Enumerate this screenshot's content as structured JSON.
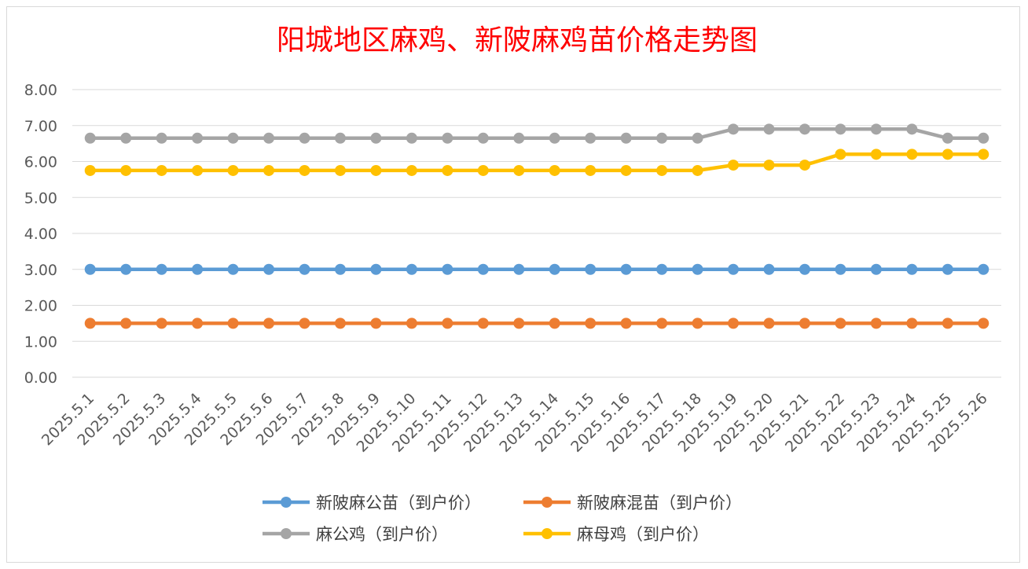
{
  "chart_data": {
    "type": "line",
    "title": "阳城地区麻鸡、新陂麻鸡苗价格走势图",
    "xlabel": "",
    "ylabel": "",
    "ylim": [
      0,
      8
    ],
    "yticks": [
      "0.00",
      "1.00",
      "2.00",
      "3.00",
      "4.00",
      "5.00",
      "6.00",
      "7.00",
      "8.00"
    ],
    "grid": true,
    "legend_position": "bottom",
    "categories": [
      "2025.5.1",
      "2025.5.2",
      "2025.5.3",
      "2025.5.4",
      "2025.5.5",
      "2025.5.6",
      "2025.5.7",
      "2025.5.8",
      "2025.5.9",
      "2025.5.10",
      "2025.5.11",
      "2025.5.12",
      "2025.5.13",
      "2025.5.14",
      "2025.5.15",
      "2025.5.16",
      "2025.5.17",
      "2025.5.18",
      "2025.5.19",
      "2025.5.20",
      "2025.5.21",
      "2025.5.22",
      "2025.5.23",
      "2025.5.24",
      "2025.5.25",
      "2025.5.26"
    ],
    "series": [
      {
        "name": "新陂麻公苗（到户价）",
        "color": "#5b9bd5",
        "values": [
          3,
          3,
          3,
          3,
          3,
          3,
          3,
          3,
          3,
          3,
          3,
          3,
          3,
          3,
          3,
          3,
          3,
          3,
          3,
          3,
          3,
          3,
          3,
          3,
          3,
          3
        ]
      },
      {
        "name": "新陂麻混苗（到户价）",
        "color": "#ed7d31",
        "values": [
          1.5,
          1.5,
          1.5,
          1.5,
          1.5,
          1.5,
          1.5,
          1.5,
          1.5,
          1.5,
          1.5,
          1.5,
          1.5,
          1.5,
          1.5,
          1.5,
          1.5,
          1.5,
          1.5,
          1.5,
          1.5,
          1.5,
          1.5,
          1.5,
          1.5,
          1.5
        ]
      },
      {
        "name": "麻公鸡（到户价）",
        "color": "#a5a5a5",
        "values": [
          6.65,
          6.65,
          6.65,
          6.65,
          6.65,
          6.65,
          6.65,
          6.65,
          6.65,
          6.65,
          6.65,
          6.65,
          6.65,
          6.65,
          6.65,
          6.65,
          6.65,
          6.65,
          6.9,
          6.9,
          6.9,
          6.9,
          6.9,
          6.9,
          6.65,
          6.65
        ]
      },
      {
        "name": "麻母鸡（到户价）",
        "color": "#ffc000",
        "values": [
          5.75,
          5.75,
          5.75,
          5.75,
          5.75,
          5.75,
          5.75,
          5.75,
          5.75,
          5.75,
          5.75,
          5.75,
          5.75,
          5.75,
          5.75,
          5.75,
          5.75,
          5.75,
          5.9,
          5.9,
          5.9,
          6.2,
          6.2,
          6.2,
          6.2,
          6.2
        ]
      }
    ]
  }
}
